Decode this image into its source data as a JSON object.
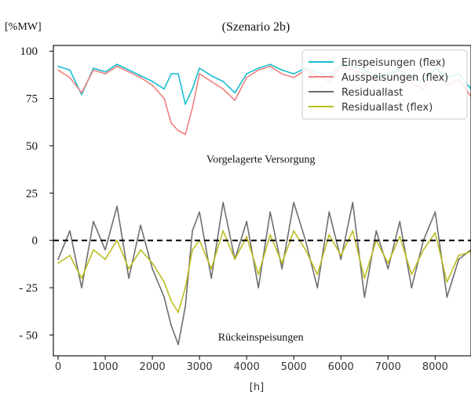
{
  "chart_data": {
    "type": "line",
    "title": "(Szenario 2b)",
    "ylabel": "[%MW]",
    "xlabel": "[h]",
    "xlim": [
      -100,
      8760
    ],
    "ylim": [
      -61,
      103
    ],
    "x_ticks": [
      0,
      1000,
      2000,
      3000,
      4000,
      5000,
      6000,
      7000,
      8000
    ],
    "y_ticks": [
      {
        "value": 100,
        "label": "100"
      },
      {
        "value": 75,
        "label": "75"
      },
      {
        "value": 50,
        "label": "50"
      },
      {
        "value": 25,
        "label": "25"
      },
      {
        "value": 0,
        "label": "0"
      },
      {
        "value": -25,
        "label": "- 25"
      },
      {
        "value": -50,
        "label": "- 50"
      }
    ],
    "grid": false,
    "legend_position": "top-right",
    "reference_line": {
      "y": 0,
      "style": "dashed",
      "color": "#000000"
    },
    "annotations": [
      {
        "text": "Vorgelagerte Versorgung",
        "x": 4300,
        "y": 41
      },
      {
        "text": "Rückeinspeisungen",
        "x": 4300,
        "y": -53
      }
    ],
    "series": [
      {
        "name": "Einspeisungen (flex)",
        "color": "#17becf",
        "x": [
          0,
          250,
          500,
          750,
          1000,
          1250,
          1500,
          1750,
          2000,
          2250,
          2400,
          2550,
          2700,
          2850,
          3000,
          3250,
          3500,
          3750,
          4000,
          4250,
          4500,
          4750,
          5000,
          5250,
          5500,
          5750,
          6000,
          6250,
          6500,
          6750,
          7000,
          7250,
          7500,
          7750,
          8000,
          8250,
          8500,
          8760
        ],
        "y": [
          92,
          90,
          77,
          91,
          89,
          93,
          90,
          87,
          84,
          80,
          88,
          88,
          72,
          80,
          91,
          87,
          84,
          78,
          88,
          91,
          93,
          90,
          88,
          91,
          89,
          86,
          93,
          92,
          90,
          87,
          88,
          90,
          86,
          84,
          91,
          86,
          88,
          80
        ]
      },
      {
        "name": "Ausspeisungen (flex)",
        "color": "#f08080",
        "x": [
          0,
          250,
          500,
          750,
          1000,
          1250,
          1500,
          1750,
          2000,
          2250,
          2400,
          2550,
          2700,
          2850,
          3000,
          3250,
          3500,
          3750,
          4000,
          4250,
          4500,
          4750,
          5000,
          5250,
          5500,
          5750,
          6000,
          6250,
          6500,
          6750,
          7000,
          7250,
          7500,
          7750,
          8000,
          8250,
          8500,
          8760
        ],
        "y": [
          90,
          86,
          78,
          90,
          88,
          92,
          89,
          86,
          82,
          75,
          62,
          58,
          56,
          70,
          88,
          84,
          80,
          74,
          86,
          90,
          92,
          88,
          86,
          90,
          87,
          84,
          92,
          90,
          88,
          85,
          84,
          88,
          83,
          80,
          88,
          82,
          85,
          76
        ]
      },
      {
        "name": "Residuallast",
        "color": "#6e6e6e",
        "x": [
          0,
          250,
          500,
          750,
          1000,
          1250,
          1500,
          1750,
          2000,
          2250,
          2400,
          2550,
          2700,
          2850,
          3000,
          3250,
          3500,
          3750,
          4000,
          4250,
          4500,
          4750,
          5000,
          5250,
          5500,
          5750,
          6000,
          6250,
          6500,
          6750,
          7000,
          7250,
          7500,
          7750,
          8000,
          8250,
          8500,
          8760
        ],
        "y": [
          -10,
          5,
          -25,
          10,
          -5,
          18,
          -20,
          8,
          -15,
          -30,
          -45,
          -55,
          -35,
          5,
          15,
          -20,
          20,
          -10,
          10,
          -25,
          15,
          -15,
          20,
          0,
          -25,
          15,
          -10,
          20,
          -30,
          5,
          -15,
          10,
          -25,
          0,
          15,
          -30,
          -10,
          -5
        ]
      },
      {
        "name": "Residuallast (flex)",
        "color": "#bcbd22",
        "x": [
          0,
          250,
          500,
          750,
          1000,
          1250,
          1500,
          1750,
          2000,
          2250,
          2400,
          2550,
          2700,
          2850,
          3000,
          3250,
          3500,
          3750,
          4000,
          4250,
          4500,
          4750,
          5000,
          5250,
          5500,
          5750,
          6000,
          6250,
          6500,
          6750,
          7000,
          7250,
          7500,
          7750,
          8000,
          8250,
          8500,
          8760
        ],
        "y": [
          -12,
          -8,
          -20,
          -5,
          -10,
          0,
          -15,
          -5,
          -12,
          -22,
          -32,
          -38,
          -25,
          -5,
          0,
          -15,
          5,
          -10,
          2,
          -18,
          3,
          -12,
          5,
          -5,
          -18,
          3,
          -8,
          5,
          -20,
          0,
          -12,
          2,
          -18,
          -5,
          4,
          -22,
          -8,
          -6
        ]
      }
    ]
  }
}
